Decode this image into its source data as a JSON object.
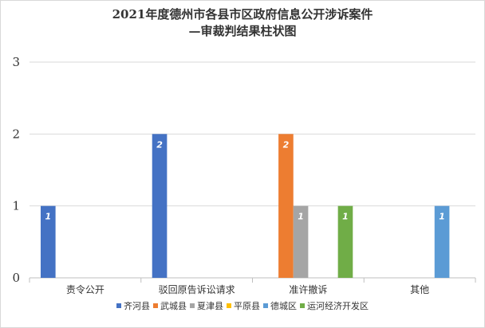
{
  "chart_data": {
    "type": "bar",
    "title_lines": [
      "2021年度德州市各县市区政府信息公开涉诉案件",
      "—审裁判结果柱状图"
    ],
    "categories": [
      "责令公开",
      "驳回原告诉讼请求",
      "准许撤诉",
      "其他"
    ],
    "ylim": [
      0,
      3
    ],
    "yticks": [
      "0",
      "1",
      "2",
      "3"
    ],
    "grid": true,
    "legend_position": "bottom",
    "series": [
      {
        "name": "齐河县",
        "color": "#4472c4",
        "values": [
          1,
          2,
          0,
          0
        ]
      },
      {
        "name": "武城县",
        "color": "#ed7d31",
        "values": [
          0,
          0,
          2,
          0
        ]
      },
      {
        "name": "夏津县",
        "color": "#a5a5a5",
        "values": [
          0,
          0,
          1,
          0
        ]
      },
      {
        "name": "平原县",
        "color": "#ffc000",
        "values": [
          0,
          0,
          0,
          0
        ]
      },
      {
        "name": "德城区",
        "color": "#5b9bd5",
        "values": [
          0,
          0,
          0,
          1
        ]
      },
      {
        "name": "运河经济开发区",
        "color": "#70ad47",
        "values": [
          0,
          0,
          1,
          0
        ]
      }
    ]
  }
}
